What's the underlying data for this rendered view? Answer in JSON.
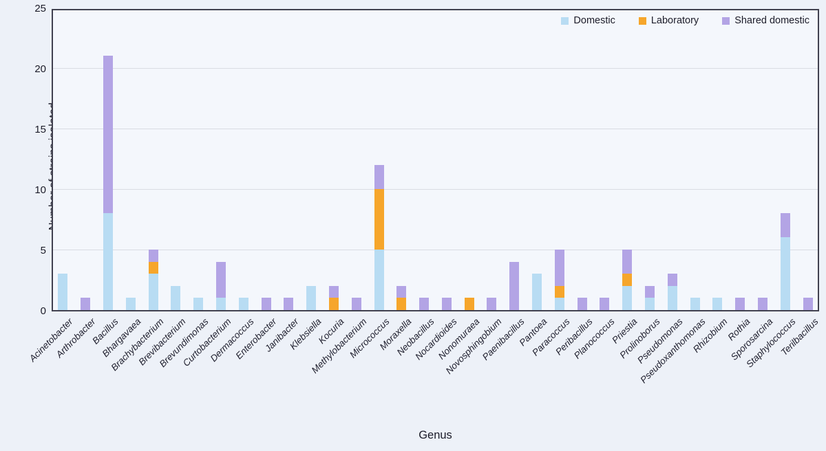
{
  "chart_data": {
    "type": "bar",
    "stacked": true,
    "xlabel": "Genus",
    "ylabel": "Number of strains isolated",
    "ylim": [
      0,
      25
    ],
    "yticks": [
      0,
      5,
      10,
      15,
      20,
      25
    ],
    "grid": true,
    "legend_position": "top-right-inside",
    "categories": [
      "Acinetobacter",
      "Arthrobacter",
      "Bacillus",
      "Bhargavaea",
      "Brachybacterium",
      "Brevibacterium",
      "Brevundimonas",
      "Curtobacterium",
      "Dermacoccus",
      "Enterobacter",
      "Janibacter",
      "Klebsiella",
      "Kocuria",
      "Methylobacterium",
      "Micrococcus",
      "Moraxella",
      "Neobacillus",
      "Nocardioides",
      "Nonomuraea",
      "Novosphingobium",
      "Paenibacillus",
      "Pantoea",
      "Paracoccus",
      "Peribacillus",
      "Planococcus",
      "Priestia",
      "Prolinoborus",
      "Pseudomonas",
      "Pseudoxanthomonas",
      "Rhizobium",
      "Rothia",
      "Sporosarcina",
      "Staphylococcus",
      "Terilbacillus"
    ],
    "series": [
      {
        "name": "Domestic",
        "color": "#b8dcf3",
        "values": [
          3,
          0,
          8,
          1,
          3,
          2,
          1,
          1,
          1,
          0,
          0,
          2,
          0,
          0,
          5,
          0,
          0,
          0,
          0,
          0,
          0,
          3,
          1,
          0,
          0,
          2,
          1,
          2,
          1,
          1,
          0,
          0,
          6,
          0
        ]
      },
      {
        "name": "Laboratory",
        "color": "#f6a62b",
        "values": [
          0,
          0,
          0,
          0,
          1,
          0,
          0,
          0,
          0,
          0,
          0,
          0,
          1,
          0,
          5,
          1,
          0,
          0,
          1,
          0,
          0,
          0,
          1,
          0,
          0,
          1,
          0,
          0,
          0,
          0,
          0,
          0,
          0,
          0
        ]
      },
      {
        "name": "Shared domestic",
        "color": "#b3a4e5",
        "values": [
          0,
          1,
          13,
          0,
          1,
          0,
          0,
          3,
          0,
          1,
          1,
          0,
          1,
          1,
          2,
          1,
          1,
          1,
          0,
          1,
          4,
          0,
          3,
          1,
          1,
          2,
          1,
          1,
          0,
          0,
          1,
          1,
          2,
          1
        ]
      }
    ],
    "colors": {
      "grid": "#d9dce3",
      "plot_border": "#41414f",
      "plot_background": "#f4f7fc",
      "figure_background": "#edf1f8",
      "text": "#1b1b28"
    }
  }
}
